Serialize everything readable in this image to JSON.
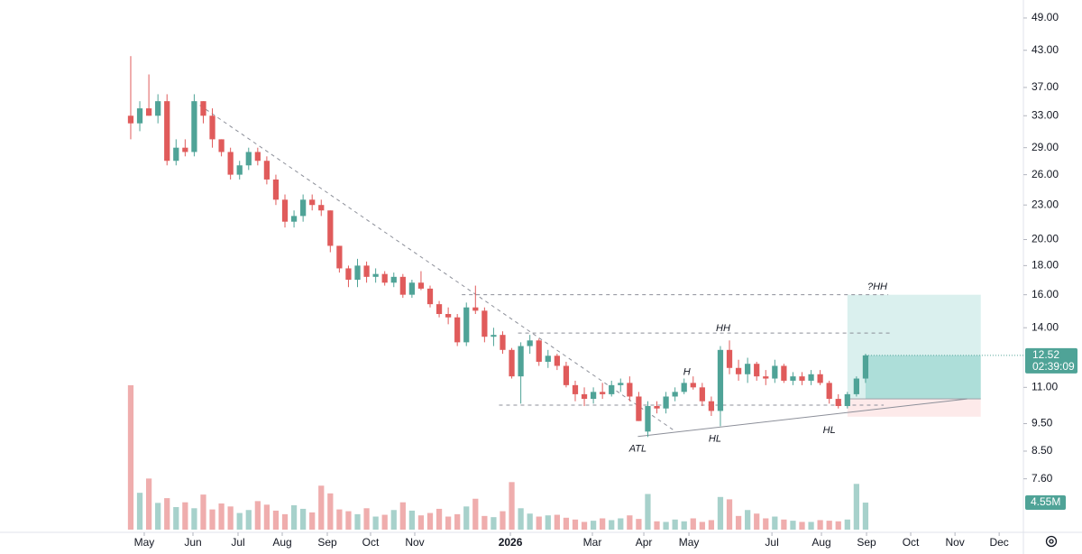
{
  "chart_data": {
    "type": "candlestick",
    "log_scale": true,
    "up_color": "#4fa397",
    "down_color": "#e05b5b",
    "xlim": [
      -14.41,
      98.4
    ],
    "ylim": [
      6.12,
      52.7
    ],
    "vlim": [
      0,
      24.6
    ],
    "yticks": [
      {
        "value": 49,
        "label": "49.00"
      },
      {
        "value": 43,
        "label": "43.00"
      },
      {
        "value": 37,
        "label": "37.00"
      },
      {
        "value": 33,
        "label": "33.00"
      },
      {
        "value": 29,
        "label": "29.00"
      },
      {
        "value": 26,
        "label": "26.00"
      },
      {
        "value": 23,
        "label": "23.00"
      },
      {
        "value": 20,
        "label": "20.00"
      },
      {
        "value": 18,
        "label": "18.00"
      },
      {
        "value": 16,
        "label": "16.00"
      },
      {
        "value": 14,
        "label": "14.00"
      },
      {
        "value": 11,
        "label": "11.00"
      },
      {
        "value": 9.5,
        "label": "9.50"
      },
      {
        "value": 8.5,
        "label": "8.50"
      },
      {
        "value": 7.6,
        "label": "7.60"
      }
    ],
    "xticks": [
      {
        "value": 1.49,
        "label": "May"
      },
      {
        "value": 6.86,
        "label": "Jun"
      },
      {
        "value": 11.83,
        "label": "Jul"
      },
      {
        "value": 16.7,
        "label": "Aug"
      },
      {
        "value": 21.67,
        "label": "Sep"
      },
      {
        "value": 26.44,
        "label": "Oct"
      },
      {
        "value": 31.31,
        "label": "Nov"
      },
      {
        "value": 41.85,
        "label": "2026"
      },
      {
        "value": 50.89,
        "label": "Mar"
      },
      {
        "value": 56.56,
        "label": "Apr"
      },
      {
        "value": 61.53,
        "label": "May"
      },
      {
        "value": 70.68,
        "label": "Jul"
      },
      {
        "value": 76.14,
        "label": "Aug"
      },
      {
        "value": 81.11,
        "label": "Sep"
      },
      {
        "value": 85.98,
        "label": "Oct"
      },
      {
        "value": 90.86,
        "label": "Nov"
      },
      {
        "value": 95.73,
        "label": "Dec"
      }
    ],
    "open": [
      33,
      32,
      34,
      33,
      35,
      27.5,
      29,
      28.5,
      35,
      33,
      30,
      28.5,
      26,
      27,
      28.5,
      27.5,
      25.5,
      23.5,
      21.5,
      22,
      23.5,
      23,
      22.5,
      19.5,
      17.8,
      17,
      18,
      17.2,
      17.4,
      16.8,
      17.2,
      16,
      16.8,
      16.4,
      15.4,
      14.8,
      14.6,
      13.2,
      15.2,
      15,
      13.5,
      13.6,
      12.8,
      11.5,
      13,
      13.3,
      12.2,
      12.5,
      12,
      11.1,
      10.7,
      10.5,
      10.8,
      10.7,
      11.1,
      11.2,
      10.6,
      9.2,
      10.2,
      10.1,
      10.6,
      10.8,
      11.2,
      11,
      10.4,
      10,
      12.8,
      11.9,
      11.6,
      12.1,
      11.5,
      11.4,
      12,
      11.3,
      11.5,
      11.3,
      11.6,
      11.2,
      10.5,
      10.2,
      10.7,
      11.4
    ],
    "high": [
      42,
      35,
      39,
      36,
      36,
      30,
      30,
      36,
      35,
      34,
      30,
      29,
      27.5,
      29,
      29,
      28,
      26,
      24,
      22.5,
      24,
      24,
      23.5,
      22.5,
      19.5,
      18,
      18.5,
      18.3,
      17.8,
      17.6,
      17.5,
      17.4,
      17,
      17.6,
      16.6,
      15.6,
      15.2,
      14.8,
      15.5,
      16.6,
      15.2,
      14,
      13.8,
      12.9,
      13.2,
      13.6,
      13.4,
      12.8,
      12.6,
      12.2,
      11.3,
      11,
      11,
      11.2,
      11.3,
      11.4,
      11.5,
      10.8,
      10.4,
      10.4,
      10.8,
      11,
      11.4,
      11.5,
      11.2,
      10.6,
      13,
      13.3,
      12.3,
      12.4,
      12.2,
      11.8,
      12.3,
      12.1,
      11.7,
      11.7,
      11.8,
      11.8,
      11.3,
      10.7,
      10.8,
      11.5,
      12.6
    ],
    "low": [
      30,
      31,
      33,
      32,
      27,
      27,
      28,
      28,
      32,
      29,
      28,
      25.5,
      25.5,
      26.5,
      27,
      25,
      23,
      21,
      21,
      21.5,
      22.5,
      22,
      19,
      17.5,
      16.5,
      16.5,
      16.8,
      16.8,
      16.6,
      16.5,
      15.8,
      15.8,
      16.3,
      15.2,
      14.6,
      14.2,
      13,
      13,
      14.8,
      13.2,
      13,
      12.6,
      11.4,
      10.3,
      12.6,
      12,
      11.9,
      11.8,
      11,
      10.4,
      10.2,
      10.3,
      10.5,
      10.6,
      10.8,
      10.4,
      9.6,
      9,
      9.9,
      9.9,
      10.4,
      10.7,
      10.9,
      10.2,
      9.8,
      9.4,
      11.6,
      11.3,
      11.2,
      11.3,
      11.1,
      11.2,
      11.2,
      11.1,
      11.1,
      11.1,
      11.1,
      10.3,
      10.1,
      10.1,
      10.6,
      11.2
    ],
    "close": [
      32,
      34,
      33,
      35,
      27.5,
      29,
      28.5,
      35,
      33,
      30,
      28.5,
      26,
      27,
      28.5,
      27.5,
      25.5,
      23.5,
      21.5,
      22,
      23.5,
      23,
      22.5,
      19.5,
      17.8,
      17,
      18,
      17.2,
      17.4,
      16.8,
      17.2,
      16,
      16.8,
      16.4,
      15.4,
      14.8,
      14.6,
      13.2,
      15.2,
      15,
      13.5,
      13.6,
      12.8,
      11.5,
      13,
      13.3,
      12.2,
      12.5,
      12,
      11.1,
      10.7,
      10.5,
      10.8,
      10.7,
      11.1,
      11.2,
      10.6,
      9.6,
      10.2,
      10.1,
      10.6,
      10.8,
      11.2,
      11,
      10.4,
      10,
      12.8,
      11.9,
      11.6,
      12.1,
      11.5,
      11.4,
      12,
      11.3,
      11.5,
      11.3,
      11.6,
      11.2,
      10.5,
      10.2,
      10.7,
      11.4,
      12.52
    ],
    "volume": [
      24.3,
      6.2,
      8.6,
      4.5,
      5.3,
      3.8,
      4.6,
      3.6,
      5.9,
      3.4,
      4.4,
      3.9,
      2.8,
      3.3,
      4.8,
      4.2,
      3.2,
      2.6,
      4.1,
      3.5,
      2.9,
      7.4,
      6.1,
      3.4,
      3.1,
      2.6,
      3.6,
      2.2,
      2.5,
      3.3,
      4.6,
      3.2,
      2.4,
      2.8,
      3.5,
      2.2,
      2.6,
      3.9,
      5.2,
      2.3,
      2.1,
      3.1,
      8,
      3.6,
      2.7,
      2.2,
      2.4,
      2.5,
      2,
      1.7,
      1.3,
      1.5,
      1.9,
      1.6,
      1.9,
      2.4,
      1.8,
      6,
      1.4,
      1.3,
      1.7,
      1.4,
      1.9,
      1.3,
      1.6,
      5.5,
      5.1,
      2.3,
      3.3,
      2.7,
      1.9,
      2.2,
      1.7,
      1.5,
      1.3,
      1.3,
      1.6,
      1.5,
      1.4,
      1.7,
      7.7,
      4.55
    ],
    "last_volume_label": "4.55M",
    "countdown": "02:39:09",
    "lines": [
      {
        "from": [
          6.96,
          35
        ],
        "to": [
          59.9,
          9.24
        ],
        "style": "dashed"
      },
      {
        "from": [
          36.5,
          16
        ],
        "to": [
          83.5,
          16
        ],
        "style": "dashed"
      },
      {
        "from": [
          42.7,
          13.7
        ],
        "to": [
          83.8,
          13.7
        ],
        "style": "dashed"
      },
      {
        "from": [
          40.6,
          10.24
        ],
        "to": [
          83,
          10.24
        ],
        "style": "dashed"
      },
      {
        "from": [
          55.9,
          9.02
        ],
        "to": [
          92.2,
          10.5
        ],
        "style": "solid"
      }
    ],
    "annotations": [
      {
        "text": "ATL",
        "x": 55.9,
        "y": 8.57
      },
      {
        "text": "HL",
        "x": 64.4,
        "y": 8.93
      },
      {
        "text": "H",
        "x": 61.3,
        "y": 11.7
      },
      {
        "text": "HH",
        "x": 65.3,
        "y": 13.96
      },
      {
        "text": "HL",
        "x": 77,
        "y": 9.24
      },
      {
        "text": "?HH",
        "x": 82.3,
        "y": 16.5
      }
    ],
    "position": {
      "x": [
        79,
        93.7
      ],
      "entry": 10.5,
      "target": 16,
      "stop": 9.77
    }
  }
}
